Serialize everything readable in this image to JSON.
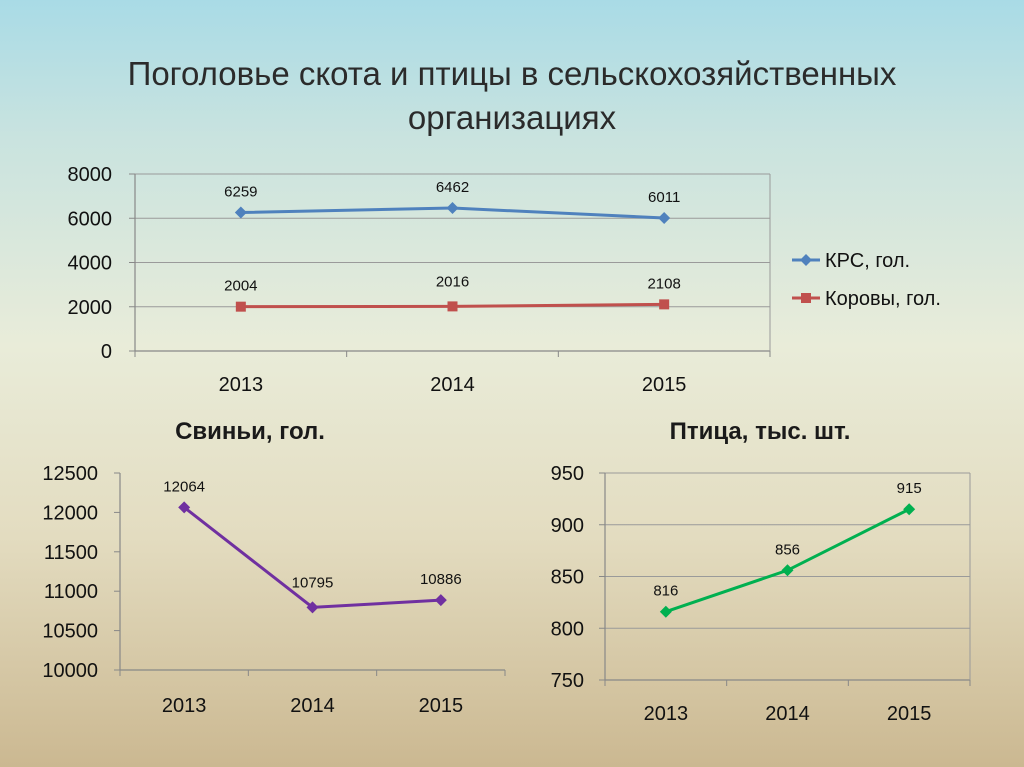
{
  "slide": {
    "title_line1": "Поголовье скота и птицы в сельскохозяйственных",
    "title_line2": "организациях"
  },
  "chart_data": [
    {
      "type": "line",
      "categories": [
        "2013",
        "2014",
        "2015"
      ],
      "ylim": [
        0,
        8000
      ],
      "yticks": [
        "0",
        "2000",
        "4000",
        "6000",
        "8000"
      ],
      "grid": true,
      "legend": "right",
      "series": [
        {
          "name": "КРС, гол.",
          "values": [
            6259,
            6462,
            6011
          ],
          "labels": [
            "6259",
            "6462",
            "6011"
          ],
          "color": "#4f81bd",
          "marker": "diamond"
        },
        {
          "name": "Коровы, гол.",
          "values": [
            2004,
            2016,
            2108
          ],
          "labels": [
            "2004",
            "2016",
            "2108"
          ],
          "color": "#c0504d",
          "marker": "square"
        }
      ]
    },
    {
      "type": "line",
      "title": "Свиньи, гол.",
      "categories": [
        "2013",
        "2014",
        "2015"
      ],
      "ylim": [
        10000,
        12500
      ],
      "yticks": [
        "10000",
        "10500",
        "11000",
        "11500",
        "12000",
        "12500"
      ],
      "grid": false,
      "series": [
        {
          "values": [
            12064,
            10795,
            10886
          ],
          "labels": [
            "12064",
            "10795",
            "10886"
          ],
          "color": "#7030a0",
          "marker": "diamond"
        }
      ]
    },
    {
      "type": "line",
      "title": "Птица, тыс. шт.",
      "categories": [
        "2013",
        "2014",
        "2015"
      ],
      "ylim": [
        750,
        950
      ],
      "yticks": [
        "750",
        "800",
        "850",
        "900",
        "950"
      ],
      "grid": true,
      "series": [
        {
          "values": [
            816,
            856,
            915
          ],
          "labels": [
            "816",
            "856",
            "915"
          ],
          "color": "#00b050",
          "marker": "diamond"
        }
      ]
    }
  ]
}
